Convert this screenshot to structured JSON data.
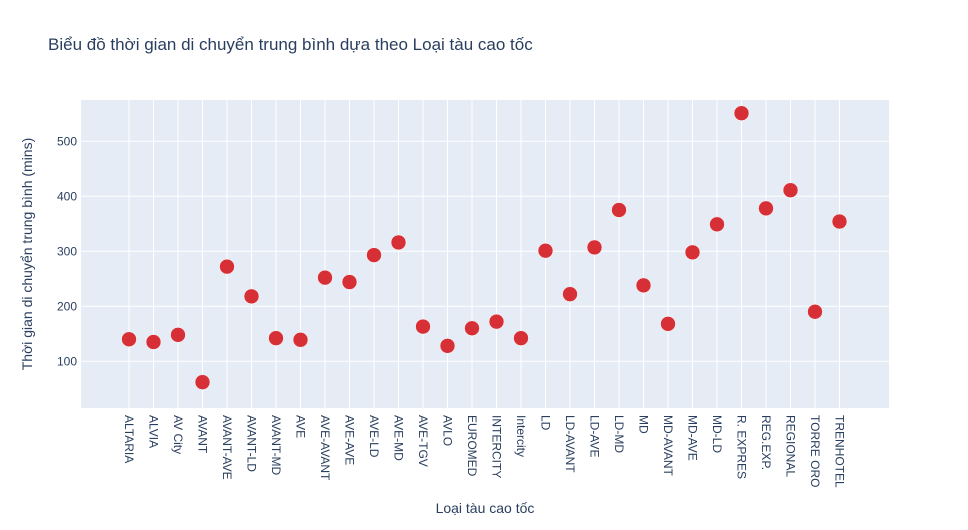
{
  "chart_data": {
    "type": "scatter",
    "title": "Biểu đồ thời gian di chuyển trung bình dựa theo Loại tàu cao tốc",
    "xlabel": "Loại tàu cao tốc",
    "ylabel": "Thời gian di chuyển trung bình (mins)",
    "ylim": [
      15,
      575
    ],
    "yticks": [
      100,
      200,
      300,
      400,
      500
    ],
    "grid": true,
    "legend": "none",
    "marker_color": "#d62f35",
    "plot_bg": "#e5ecf6",
    "categories": [
      "ALTARIA",
      "ALVIA",
      "AV City",
      "AVANT",
      "AVANT-AVE",
      "AVANT-LD",
      "AVANT-MD",
      "AVE",
      "AVE-AVANT",
      "AVE-AVE",
      "AVE-LD",
      "AVE-MD",
      "AVE-TGV",
      "AVLO",
      "EUROMED",
      "INTERCITY",
      "Intercity",
      "LD",
      "LD-AVANT",
      "LD-AVE",
      "LD-MD",
      "MD",
      "MD-AVANT",
      "MD-AVE",
      "MD-LD",
      "R. EXPRES",
      "REG.EXP.",
      "REGIONAL",
      "TORRE ORO",
      "TRENHOTEL"
    ],
    "values": [
      140,
      135,
      148,
      62,
      272,
      218,
      142,
      139,
      252,
      244,
      293,
      316,
      163,
      128,
      160,
      172,
      142,
      301,
      222,
      307,
      375,
      238,
      168,
      298,
      349,
      551,
      378,
      411,
      190,
      354
    ]
  }
}
